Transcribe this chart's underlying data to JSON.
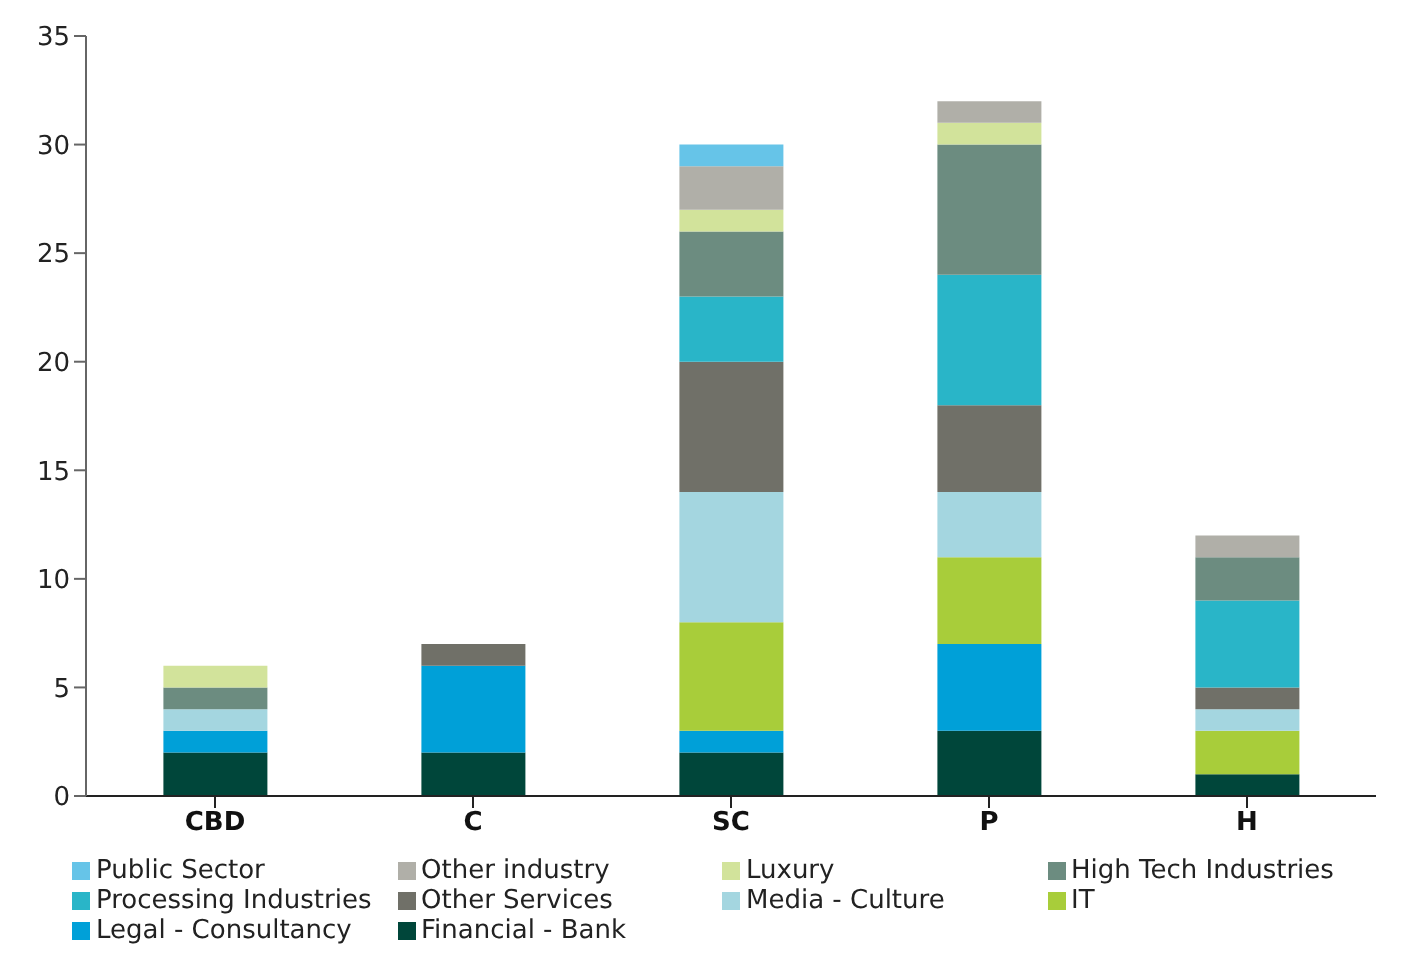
{
  "chart_data": {
    "type": "bar",
    "stacked": true,
    "categories": [
      "CBD",
      "C",
      "SC",
      "P",
      "H"
    ],
    "series": [
      {
        "name": "Financial - Bank",
        "color": "#00463a",
        "values": [
          2,
          2,
          2,
          3,
          1
        ]
      },
      {
        "name": "Legal - Consultancy",
        "color": "#00a0d8",
        "values": [
          1,
          4,
          1,
          4,
          0
        ]
      },
      {
        "name": "IT",
        "color": "#a8cd3a",
        "values": [
          0,
          0,
          5,
          4,
          2
        ]
      },
      {
        "name": "Media - Culture",
        "color": "#a4d6e0",
        "values": [
          1,
          0,
          6,
          3,
          1
        ]
      },
      {
        "name": "Other Services",
        "color": "#707068",
        "values": [
          0,
          1,
          6,
          4,
          1
        ]
      },
      {
        "name": "Processing Industries",
        "color": "#29b5c8",
        "values": [
          0,
          0,
          3,
          6,
          4
        ]
      },
      {
        "name": "High Tech Industries",
        "color": "#6c8c80",
        "values": [
          1,
          0,
          3,
          6,
          2
        ]
      },
      {
        "name": "Luxury",
        "color": "#d2e39b",
        "values": [
          1,
          0,
          1,
          1,
          0
        ]
      },
      {
        "name": "Other industry",
        "color": "#b0afa8",
        "values": [
          0,
          0,
          2,
          1,
          1
        ]
      },
      {
        "name": "Public Sector",
        "color": "#66c4e8",
        "values": [
          0,
          0,
          1,
          0,
          0
        ]
      }
    ],
    "ylim": [
      0,
      35
    ],
    "yticks": [
      0,
      5,
      10,
      15,
      20,
      25,
      30,
      35
    ],
    "grid": false,
    "legend": "bottom"
  }
}
